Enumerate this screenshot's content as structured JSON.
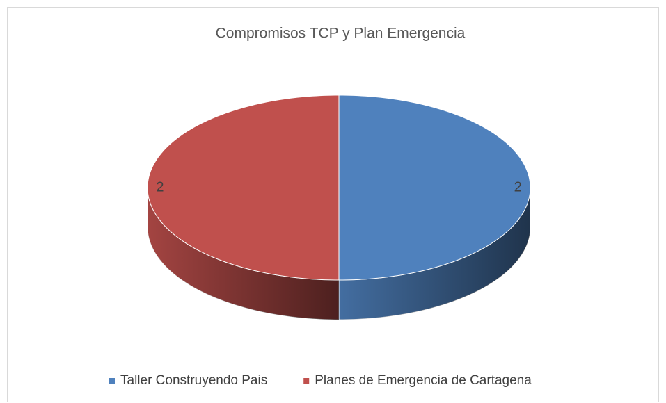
{
  "chart_data": {
    "type": "pie",
    "title": "Compromisos TCP y Plan Emergencia",
    "categories": [
      "Taller Construyendo Pais",
      "Planes de Emergencia de Cartagena"
    ],
    "values": [
      2,
      2
    ],
    "colors": [
      "#4f81bd",
      "#c0504d"
    ],
    "legend": "bottom"
  }
}
